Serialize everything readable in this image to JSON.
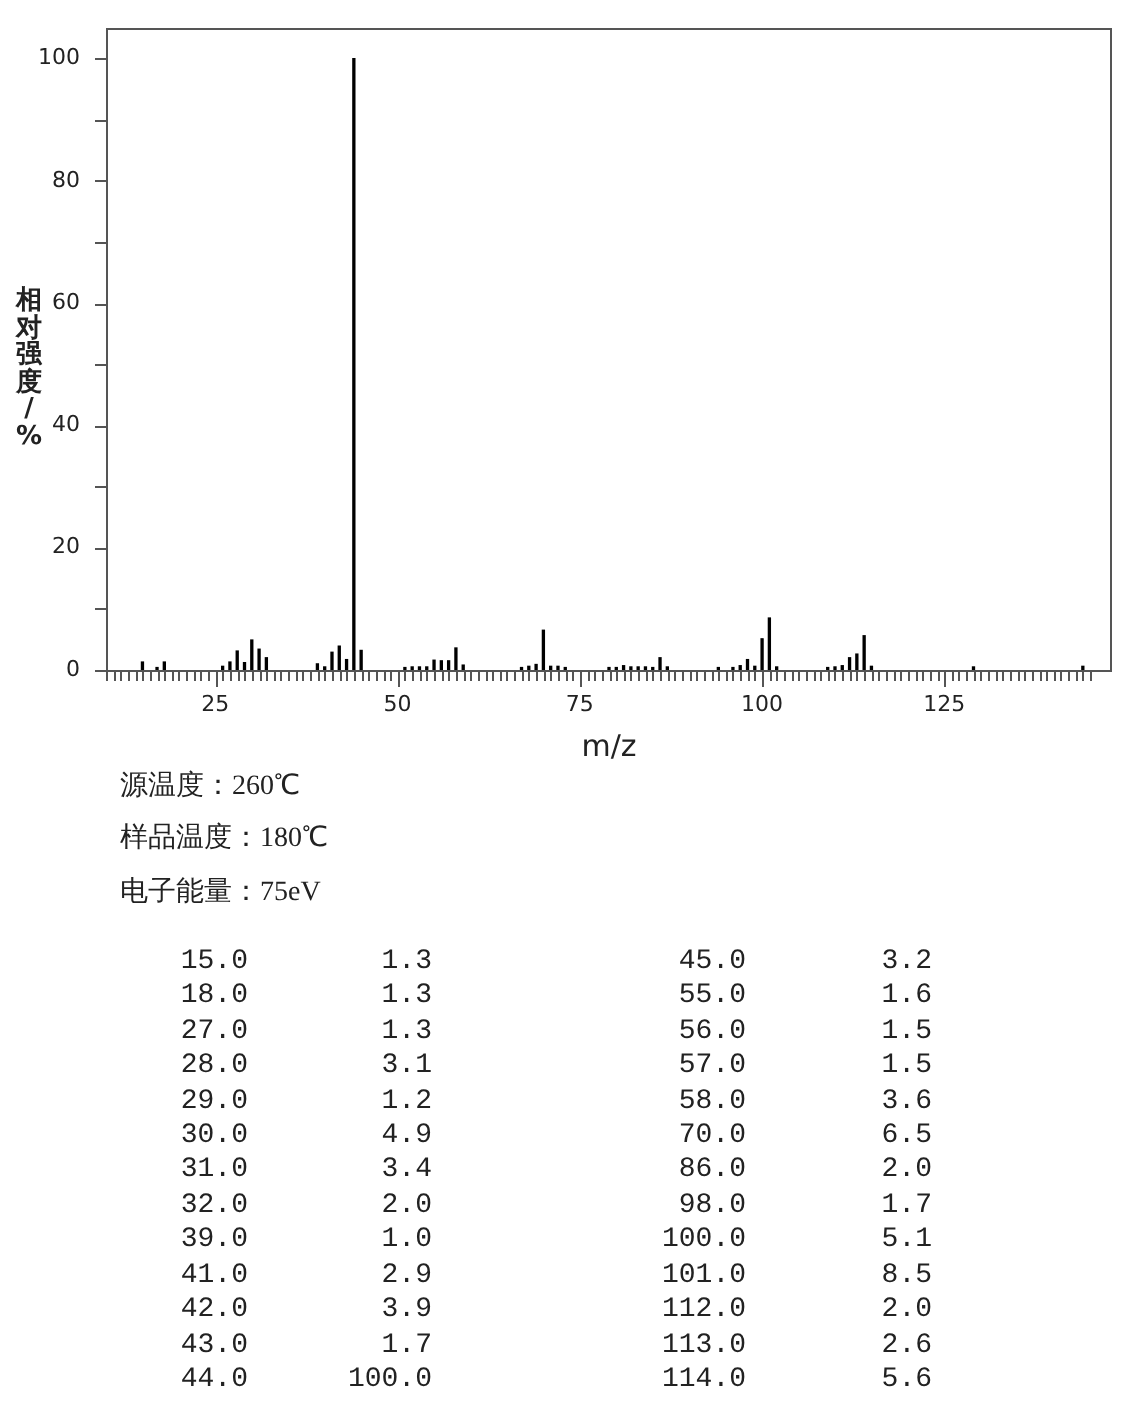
{
  "chart_data": [
    {
      "type": "bar",
      "xlabel": "m/z",
      "ylabel": "相对强度/%",
      "color": "#000000",
      "x": [
        15,
        17,
        18,
        26,
        27,
        28,
        29,
        30,
        31,
        32,
        39,
        40,
        41,
        42,
        43,
        44,
        45,
        51,
        52,
        53,
        54,
        55,
        56,
        57,
        58,
        59,
        67,
        68,
        69,
        70,
        71,
        72,
        73,
        79,
        80,
        81,
        82,
        83,
        84,
        85,
        86,
        87,
        94,
        96,
        97,
        98,
        99,
        100,
        101,
        102,
        109,
        110,
        111,
        112,
        113,
        114,
        115,
        129,
        144
      ],
      "values": [
        1.3,
        0.4,
        1.3,
        0.6,
        1.3,
        3.1,
        1.2,
        4.9,
        3.4,
        2.0,
        1.0,
        0.5,
        2.9,
        3.9,
        1.7,
        100.0,
        3.2,
        0.4,
        0.5,
        0.5,
        0.5,
        1.6,
        1.5,
        1.5,
        3.6,
        0.8,
        0.4,
        0.6,
        0.9,
        6.5,
        0.6,
        0.6,
        0.4,
        0.4,
        0.4,
        0.7,
        0.5,
        0.5,
        0.5,
        0.4,
        2.0,
        0.5,
        0.4,
        0.4,
        0.7,
        1.7,
        0.6,
        5.1,
        8.5,
        0.5,
        0.4,
        0.5,
        0.7,
        2.0,
        2.6,
        5.6,
        0.6,
        0.5,
        0.6
      ],
      "xlim": [
        10,
        148
      ],
      "ylim": [
        0,
        105
      ],
      "xticks": [
        {
          "value": 10,
          "label": null
        },
        {
          "value": 11,
          "label": null
        },
        {
          "value": 12,
          "label": null
        },
        {
          "value": 13,
          "label": null
        },
        {
          "value": 14,
          "label": null
        },
        {
          "value": 15,
          "label": null
        },
        {
          "value": 16,
          "label": null
        },
        {
          "value": 17,
          "label": null
        },
        {
          "value": 18,
          "label": null
        },
        {
          "value": 19,
          "label": null
        },
        {
          "value": 20,
          "label": null
        },
        {
          "value": 21,
          "label": null
        },
        {
          "value": 22,
          "label": null
        },
        {
          "value": 23,
          "label": null
        },
        {
          "value": 24,
          "label": null
        },
        25,
        {
          "value": 26,
          "label": null
        },
        {
          "value": 27,
          "label": null
        },
        {
          "value": 28,
          "label": null
        },
        {
          "value": 29,
          "label": null
        },
        {
          "value": 30,
          "label": null
        },
        {
          "value": 31,
          "label": null
        },
        {
          "value": 32,
          "label": null
        },
        {
          "value": 33,
          "label": null
        },
        {
          "value": 34,
          "label": null
        },
        {
          "value": 35,
          "label": null
        },
        {
          "value": 36,
          "label": null
        },
        {
          "value": 37,
          "label": null
        },
        {
          "value": 38,
          "label": null
        },
        {
          "value": 39,
          "label": null
        },
        {
          "value": 40,
          "label": null
        },
        {
          "value": 41,
          "label": null
        },
        {
          "value": 42,
          "label": null
        },
        {
          "value": 43,
          "label": null
        },
        {
          "value": 44,
          "label": null
        },
        {
          "value": 45,
          "label": null
        },
        {
          "value": 46,
          "label": null
        },
        {
          "value": 47,
          "label": null
        },
        {
          "value": 48,
          "label": null
        },
        {
          "value": 49,
          "label": null
        },
        50,
        {
          "value": 51,
          "label": null
        },
        {
          "value": 52,
          "label": null
        },
        {
          "value": 53,
          "label": null
        },
        {
          "value": 54,
          "label": null
        },
        {
          "value": 55,
          "label": null
        },
        {
          "value": 56,
          "label": null
        },
        {
          "value": 57,
          "label": null
        },
        {
          "value": 58,
          "label": null
        },
        {
          "value": 59,
          "label": null
        },
        {
          "value": 60,
          "label": null
        },
        {
          "value": 61,
          "label": null
        },
        {
          "value": 62,
          "label": null
        },
        {
          "value": 63,
          "label": null
        },
        {
          "value": 64,
          "label": null
        },
        {
          "value": 65,
          "label": null
        },
        {
          "value": 66,
          "label": null
        },
        {
          "value": 67,
          "label": null
        },
        {
          "value": 68,
          "label": null
        },
        {
          "value": 69,
          "label": null
        },
        {
          "value": 70,
          "label": null
        },
        {
          "value": 71,
          "label": null
        },
        {
          "value": 72,
          "label": null
        },
        {
          "value": 73,
          "label": null
        },
        {
          "value": 74,
          "label": null
        },
        75,
        {
          "value": 76,
          "label": null
        },
        {
          "value": 77,
          "label": null
        },
        {
          "value": 78,
          "label": null
        },
        {
          "value": 79,
          "label": null
        },
        {
          "value": 80,
          "label": null
        },
        {
          "value": 81,
          "label": null
        },
        {
          "value": 82,
          "label": null
        },
        {
          "value": 83,
          "label": null
        },
        {
          "value": 84,
          "label": null
        },
        {
          "value": 85,
          "label": null
        },
        {
          "value": 86,
          "label": null
        },
        {
          "value": 87,
          "label": null
        },
        {
          "value": 88,
          "label": null
        },
        {
          "value": 89,
          "label": null
        },
        {
          "value": 90,
          "label": null
        },
        {
          "value": 91,
          "label": null
        },
        {
          "value": 92,
          "label": null
        },
        {
          "value": 93,
          "label": null
        },
        {
          "value": 94,
          "label": null
        },
        {
          "value": 95,
          "label": null
        },
        {
          "value": 96,
          "label": null
        },
        {
          "value": 97,
          "label": null
        },
        {
          "value": 98,
          "label": null
        },
        {
          "value": 99,
          "label": null
        },
        100,
        {
          "value": 101,
          "label": null
        },
        {
          "value": 102,
          "label": null
        },
        {
          "value": 103,
          "label": null
        },
        {
          "value": 104,
          "label": null
        },
        {
          "value": 105,
          "label": null
        },
        {
          "value": 106,
          "label": null
        },
        {
          "value": 107,
          "label": null
        },
        {
          "value": 108,
          "label": null
        },
        {
          "value": 109,
          "label": null
        },
        {
          "value": 110,
          "label": null
        },
        {
          "value": 111,
          "label": null
        },
        {
          "value": 112,
          "label": null
        },
        {
          "value": 113,
          "label": null
        },
        {
          "value": 114,
          "label": null
        },
        {
          "value": 115,
          "label": null
        },
        {
          "value": 116,
          "label": null
        },
        {
          "value": 117,
          "label": null
        },
        {
          "value": 118,
          "label": null
        },
        {
          "value": 119,
          "label": null
        },
        {
          "value": 120,
          "label": null
        },
        {
          "value": 121,
          "label": null
        },
        {
          "value": 122,
          "label": null
        },
        {
          "value": 123,
          "label": null
        },
        {
          "value": 124,
          "label": null
        },
        125,
        {
          "value": 126,
          "label": null
        },
        {
          "value": 127,
          "label": null
        },
        {
          "value": 128,
          "label": null
        },
        {
          "value": 129,
          "label": null
        },
        {
          "value": 130,
          "label": null
        },
        {
          "value": 131,
          "label": null
        },
        {
          "value": 132,
          "label": null
        },
        {
          "value": 133,
          "label": null
        },
        {
          "value": 134,
          "label": null
        },
        {
          "value": 135,
          "label": null
        },
        {
          "value": 136,
          "label": null
        },
        {
          "value": 137,
          "label": null
        },
        {
          "value": 138,
          "label": null
        },
        {
          "value": 139,
          "label": null
        },
        {
          "value": 140,
          "label": null
        },
        {
          "value": 141,
          "label": null
        },
        {
          "value": 142,
          "label": null
        },
        {
          "value": 143,
          "label": null
        },
        {
          "value": 144,
          "label": null
        },
        {
          "value": 145,
          "label": null
        }
      ],
      "yticks": [
        0,
        {
          "value": 10,
          "label": null
        },
        20,
        {
          "value": 30,
          "label": null
        },
        40,
        {
          "value": 50,
          "label": null
        },
        60,
        {
          "value": 70,
          "label": null
        },
        80,
        {
          "value": 90,
          "label": null
        },
        100
      ],
      "annotations": [
        "源温度：260℃",
        "样品温度：180℃",
        "电子能量：75eV"
      ]
    },
    {
      "type": "other",
      "annotations": [
        "15.0 1.3",
        "45.0 3.2",
        "18.0 1.3",
        "55.0 1.6",
        "27.0 1.3",
        "56.0 1.5",
        "28.0 3.1",
        "57.0 1.5",
        "29.0 1.2",
        "58.0 3.6",
        "30.0 4.9",
        "70.0 6.5",
        "31.0 3.4",
        "86.0 2.0",
        "32.0 2.0",
        "98.0 1.7",
        "39.0 1.0",
        "100.0 5.1",
        "41.0 2.9",
        "101.0 8.5",
        "42.0 3.9",
        "112.0 2.0",
        "43.0 1.7",
        "113.0 2.6",
        "44.0 100.0",
        "114.0 5.6"
      ]
    }
  ]
}
